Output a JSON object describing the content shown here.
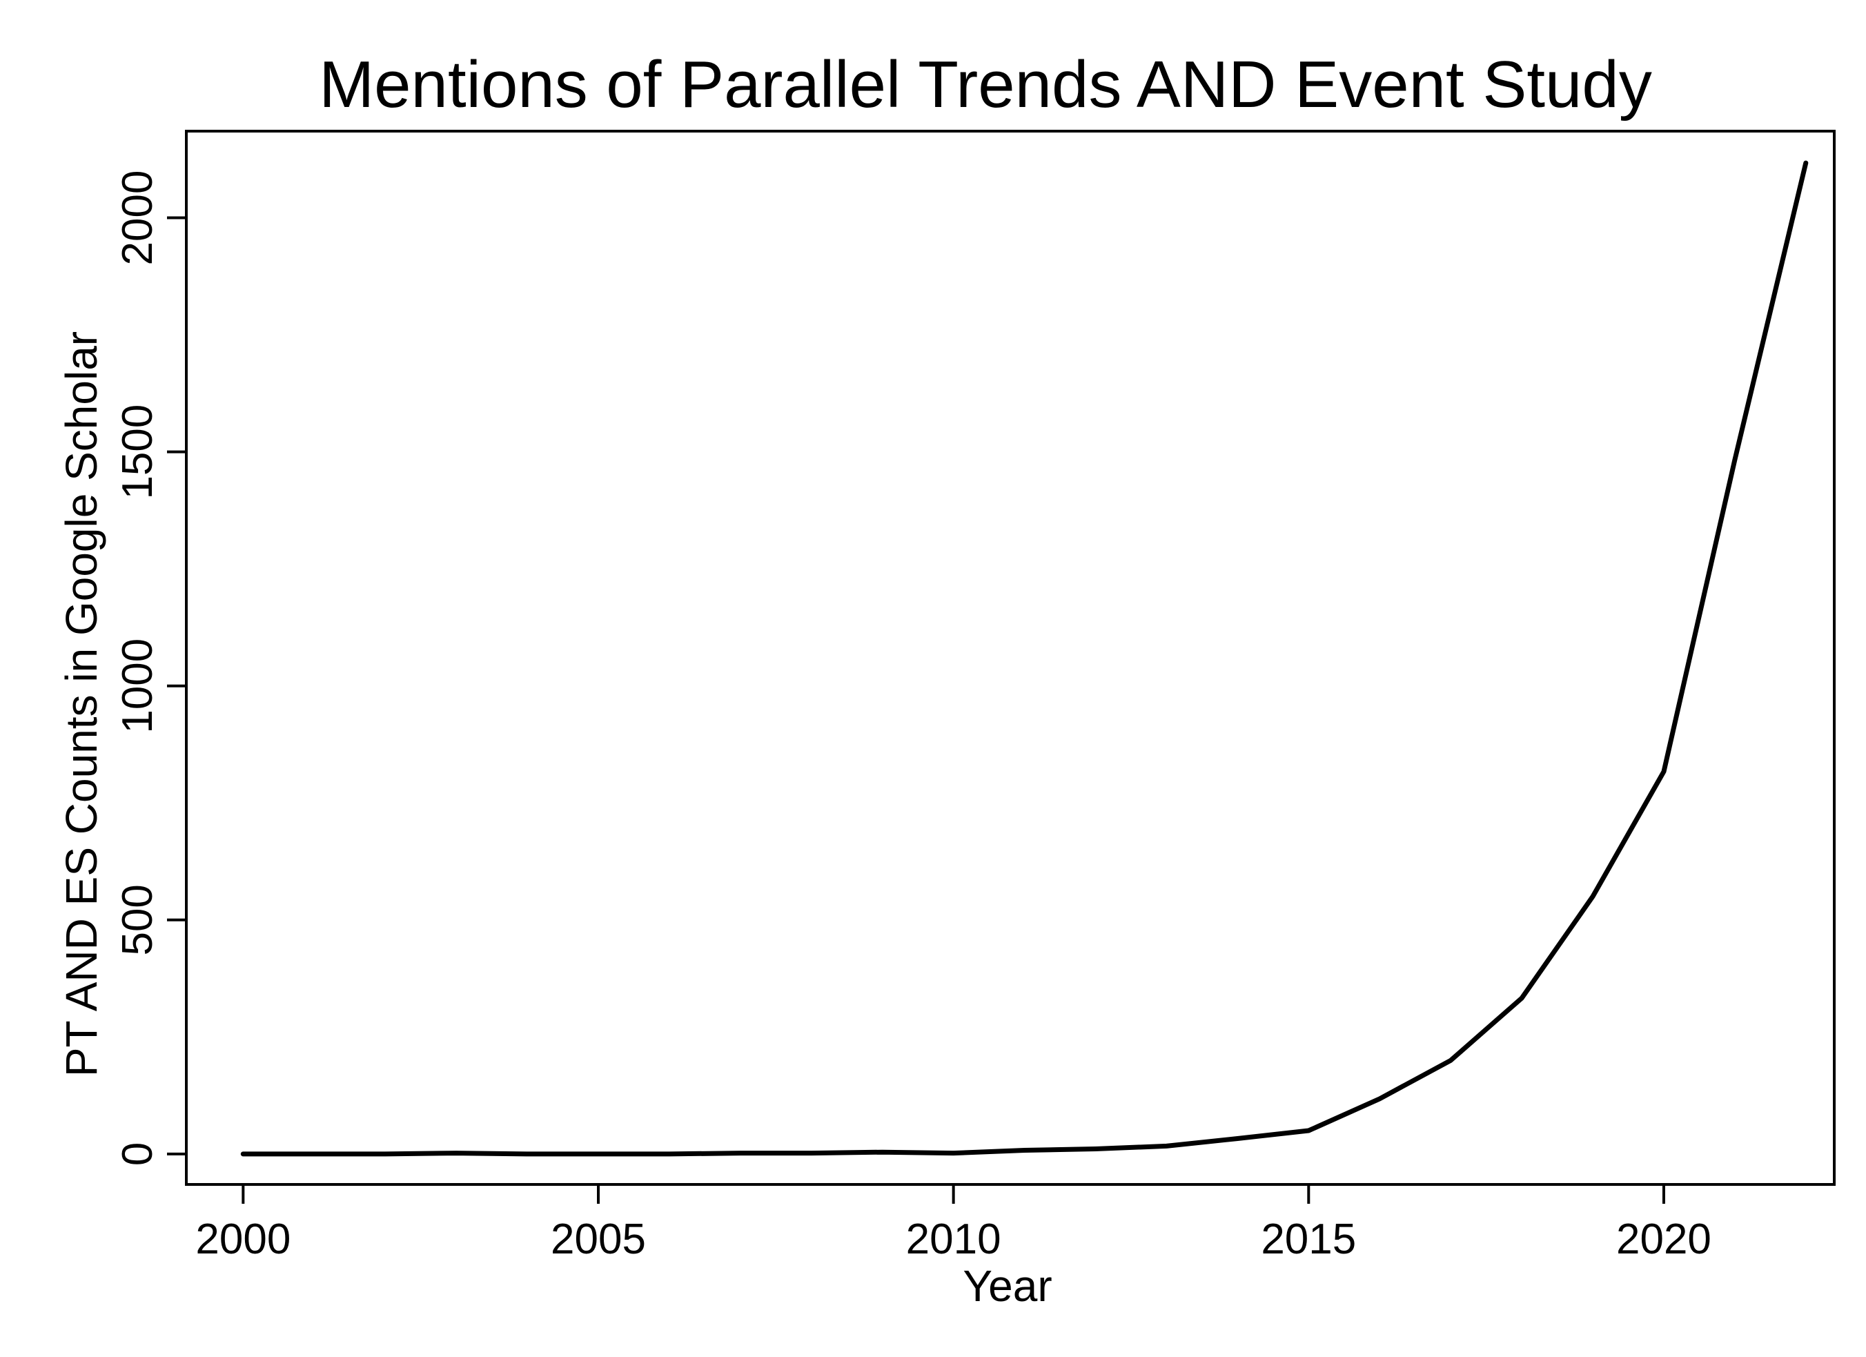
{
  "chart_data": {
    "type": "line",
    "title": "Mentions of Parallel Trends AND Event Study",
    "xlabel": "Year",
    "ylabel": "PT AND ES Counts in Google Scholar",
    "xlim": [
      1999.2,
      2022.4
    ],
    "ylim": [
      -65,
      2185
    ],
    "xticks": [
      2000,
      2005,
      2010,
      2015,
      2020
    ],
    "yticks": [
      0,
      500,
      1000,
      1500,
      2000
    ],
    "grid": false,
    "legend": "none",
    "line_color": "#000000",
    "series": [
      {
        "x": [
          2000,
          2001,
          2002,
          2003,
          2004,
          2005,
          2006,
          2007,
          2008,
          2009,
          2010,
          2011,
          2012,
          2013,
          2014,
          2015,
          2016,
          2017,
          2018,
          2019,
          2020,
          2021,
          2022
        ],
        "values": [
          0,
          0,
          0,
          2,
          0,
          0,
          0,
          2,
          2,
          4,
          2,
          8,
          11,
          17,
          33,
          50,
          118,
          200,
          333,
          550,
          817,
          1483,
          2117
        ]
      }
    ]
  }
}
